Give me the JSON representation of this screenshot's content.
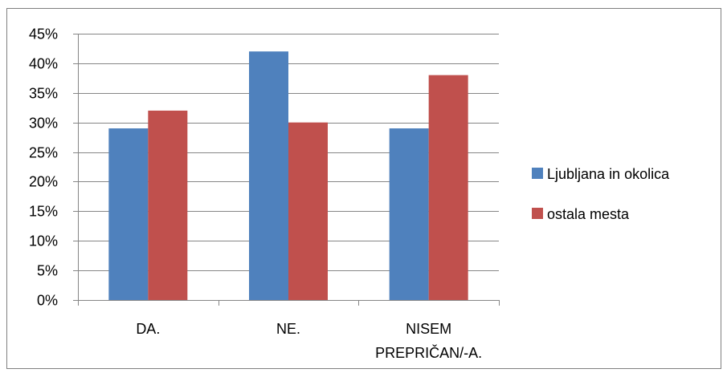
{
  "chart_data": {
    "type": "bar",
    "title": "",
    "xlabel": "",
    "ylabel": "",
    "categories": [
      [
        "DA."
      ],
      [
        "NE."
      ],
      [
        "NISEM",
        "PREPRIČAN/-A."
      ]
    ],
    "series": [
      {
        "name": "Ljubljana in okolica",
        "color": "#4f81bd",
        "values": [
          0.29,
          0.42,
          0.29
        ]
      },
      {
        "name": "ostala mesta",
        "color": "#c0504d",
        "values": [
          0.32,
          0.3,
          0.38
        ]
      }
    ],
    "ylim": [
      0,
      0.45
    ],
    "yticks": [
      0,
      0.05,
      0.1,
      0.15,
      0.2,
      0.25,
      0.3,
      0.35,
      0.4,
      0.45
    ],
    "ytick_labels": [
      "0%",
      "5%",
      "10%",
      "15%",
      "20%",
      "25%",
      "30%",
      "35%",
      "40%",
      "45%"
    ],
    "grid": true,
    "legend_position": "right"
  }
}
